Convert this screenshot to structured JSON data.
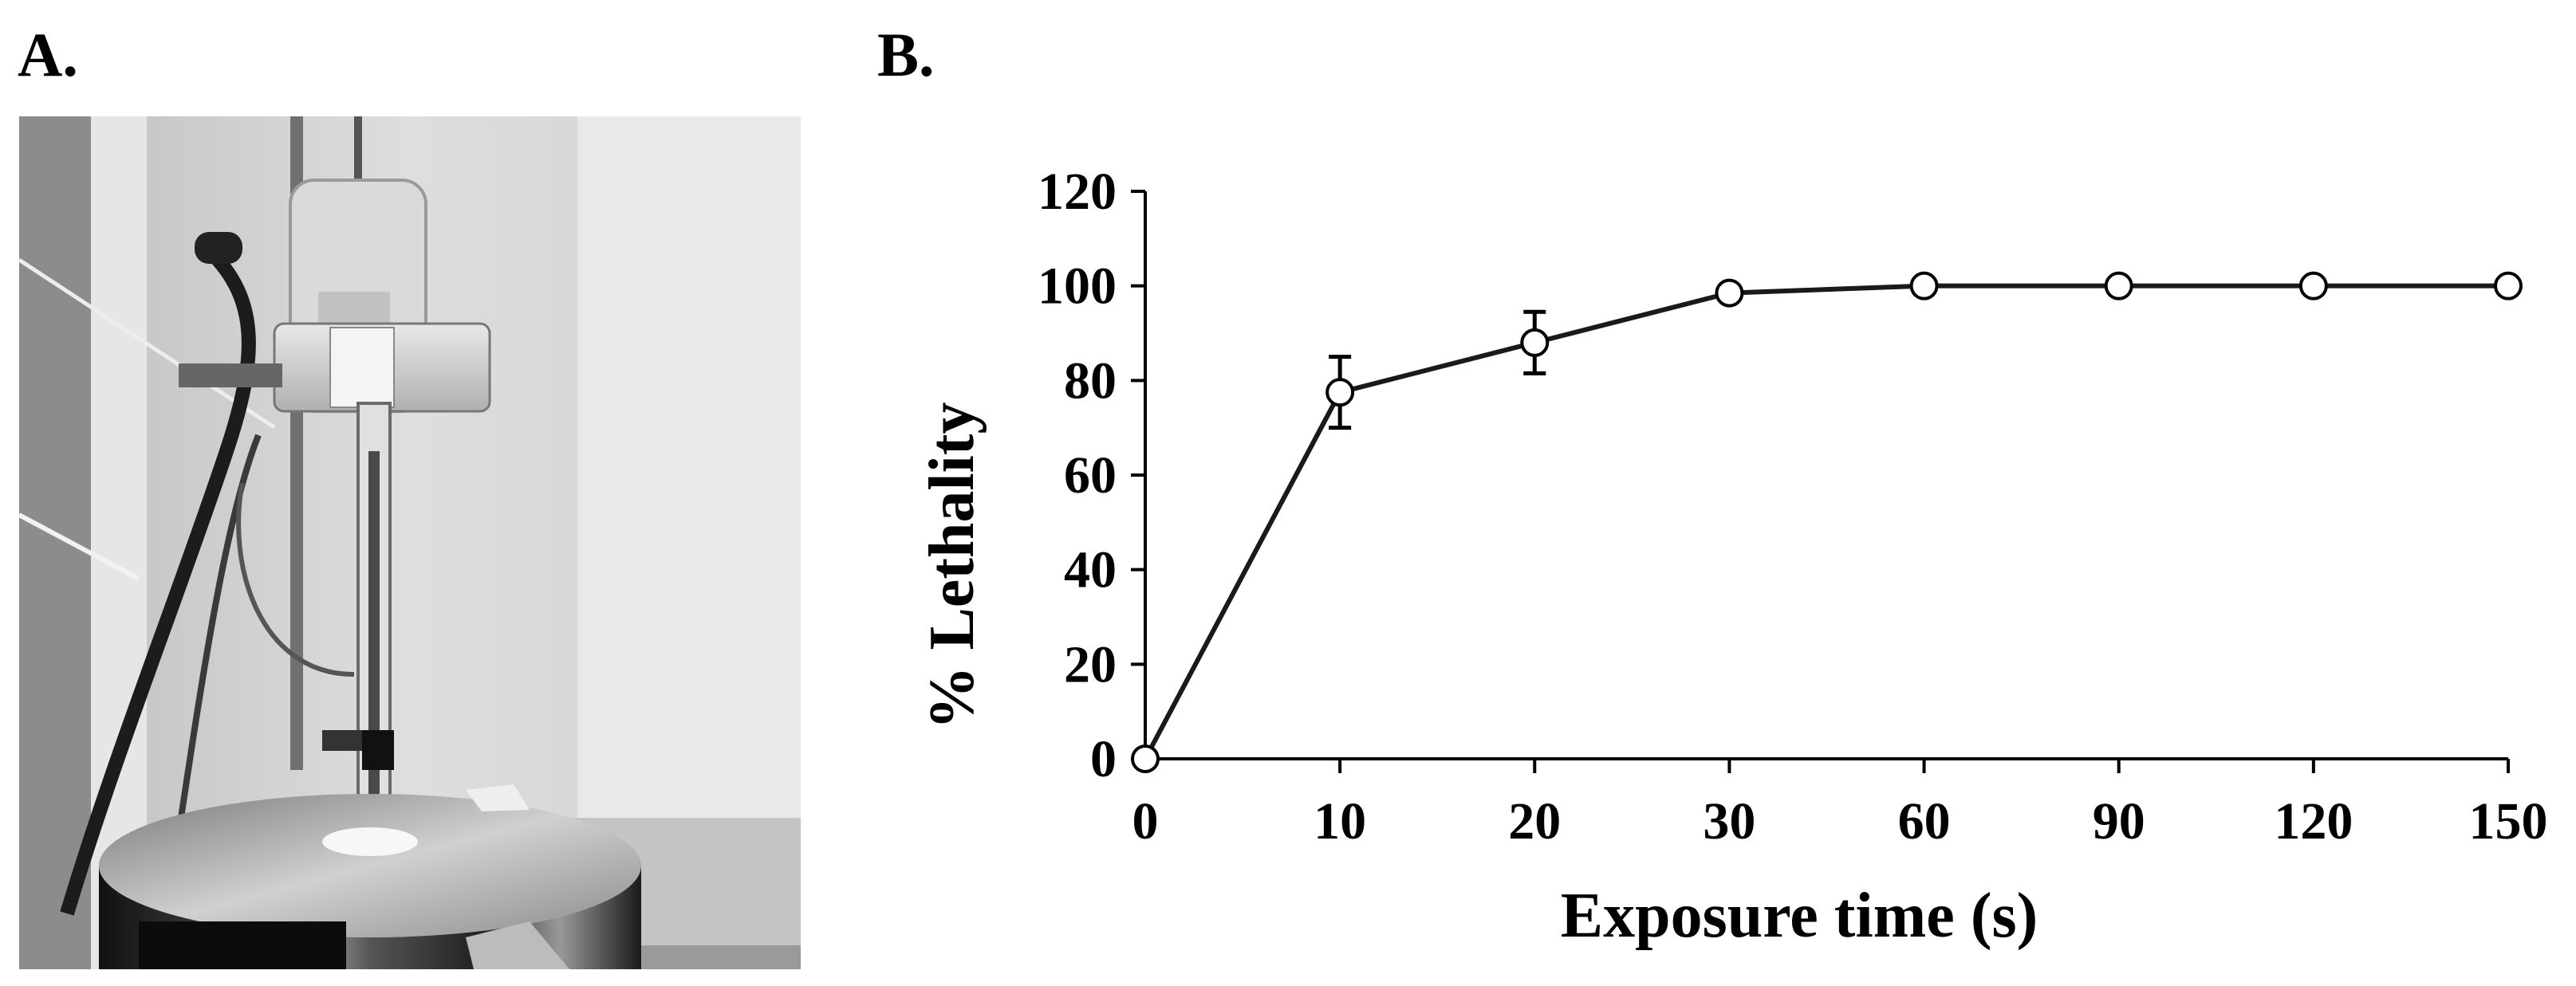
{
  "panels": {
    "a_label": "A.",
    "b_label": "B."
  },
  "chart_data": {
    "type": "line",
    "xlabel": "Exposure time (s)",
    "ylabel": "% Lethality",
    "categories": [
      "0",
      "10",
      "20",
      "30",
      "60",
      "90",
      "120",
      "150"
    ],
    "series": [
      {
        "values": [
          0,
          77.5,
          88,
          98.5,
          100,
          100,
          100,
          100
        ],
        "error": [
          0,
          7.5,
          6.5,
          0,
          0,
          0,
          0,
          0
        ]
      }
    ],
    "yticks": [
      0,
      20,
      40,
      60,
      80,
      100,
      120
    ],
    "ylim": [
      0,
      120
    ],
    "grid": false,
    "marker": "open-circle",
    "line_color": "#1a1a1a"
  }
}
